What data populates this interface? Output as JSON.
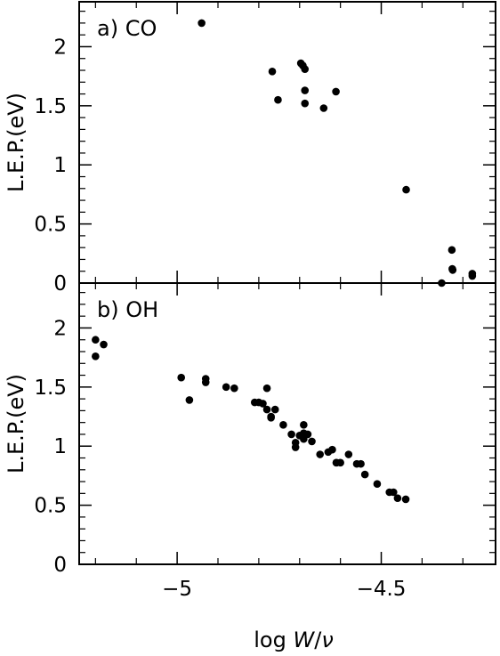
{
  "chart_data": [
    {
      "type": "scatter",
      "panel_label": "a) CO",
      "ylabel": "L.E.P.(eV)",
      "xlabel": "log W/ν",
      "xlim": [
        -5.24,
        -4.22
      ],
      "ylim": [
        0,
        2.38
      ],
      "xticks": [
        -5,
        -4.5
      ],
      "xtick_labels": [
        "−5",
        "−4.5"
      ],
      "yticks": [
        0,
        0.5,
        1,
        1.5,
        2
      ],
      "ytick_labels": [
        "0",
        "0.5",
        "1",
        "1.5",
        "2"
      ],
      "series": [
        {
          "x": [
            -4.94,
            -4.767,
            -4.753,
            -4.697,
            -4.692,
            -4.687,
            -4.687,
            -4.687,
            -4.641,
            -4.611,
            -4.439,
            -4.352,
            -4.327,
            -4.326,
            -4.325,
            -4.277,
            -4.277
          ],
          "y": [
            2.2,
            1.79,
            1.55,
            1.86,
            1.84,
            1.81,
            1.63,
            1.52,
            1.48,
            1.62,
            0.79,
            0.0,
            0.28,
            0.12,
            0.11,
            0.08,
            0.06
          ]
        }
      ]
    },
    {
      "type": "scatter",
      "panel_label": "b) OH",
      "ylabel": "L.E.P.(eV)",
      "xlabel": "log W/ν",
      "xlim": [
        -5.24,
        -4.22
      ],
      "ylim": [
        0,
        2.38
      ],
      "xticks": [
        -5,
        -4.5
      ],
      "xtick_labels": [
        "−5",
        "−4.5"
      ],
      "yticks": [
        0,
        0.5,
        1,
        1.5,
        2
      ],
      "ytick_labels": [
        "0",
        "0.5",
        "1",
        "1.5",
        "2"
      ],
      "series": [
        {
          "x": [
            -5.2,
            -5.2,
            -5.18,
            -4.99,
            -4.97,
            -4.93,
            -4.93,
            -4.88,
            -4.86,
            -4.81,
            -4.8,
            -4.79,
            -4.78,
            -4.78,
            -4.77,
            -4.77,
            -4.76,
            -4.74,
            -4.72,
            -4.71,
            -4.71,
            -4.7,
            -4.69,
            -4.69,
            -4.69,
            -4.68,
            -4.67,
            -4.65,
            -4.63,
            -4.62,
            -4.61,
            -4.61,
            -4.6,
            -4.58,
            -4.56,
            -4.55,
            -4.54,
            -4.51,
            -4.48,
            -4.47,
            -4.46,
            -4.44
          ],
          "y": [
            1.9,
            1.76,
            1.86,
            1.58,
            1.39,
            1.57,
            1.54,
            1.5,
            1.49,
            1.37,
            1.37,
            1.36,
            1.49,
            1.31,
            1.25,
            1.24,
            1.31,
            1.18,
            1.1,
            1.03,
            0.99,
            1.09,
            1.06,
            1.18,
            1.11,
            1.1,
            1.04,
            0.93,
            0.95,
            0.97,
            0.86,
            0.86,
            0.86,
            0.93,
            0.85,
            0.85,
            0.76,
            0.68,
            0.61,
            0.61,
            0.56,
            0.55
          ]
        }
      ]
    }
  ],
  "colors": {
    "ink": "#000000",
    "background": "#ffffff"
  }
}
